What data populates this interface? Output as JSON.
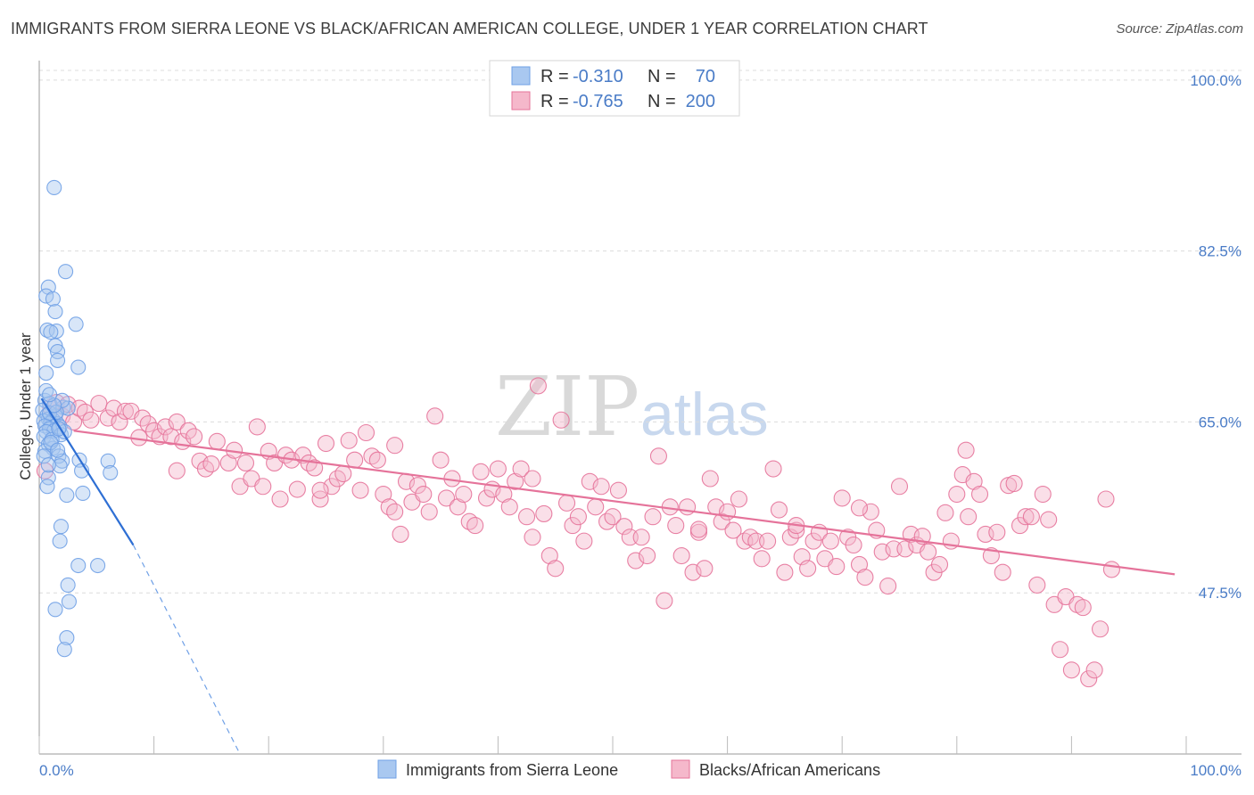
{
  "header": {
    "title": "IMMIGRANTS FROM SIERRA LEONE VS BLACK/AFRICAN AMERICAN COLLEGE, UNDER 1 YEAR CORRELATION CHART",
    "source": "Source: ZipAtlas.com"
  },
  "watermark": {
    "part1": "ZIP",
    "part2": "atlas"
  },
  "legend": {
    "rows": [
      {
        "r_label": "R =",
        "r_value": "-0.310",
        "n_label": "N =",
        "n_value": "70",
        "color": "#a9c8f0"
      },
      {
        "r_label": "R =",
        "r_value": "-0.765",
        "n_label": "N =",
        "n_value": "200",
        "color": "#f5b8cb"
      }
    ]
  },
  "bottom_legend": {
    "items": [
      {
        "label": "Immigrants from Sierra Leone",
        "color": "#a9c8f0"
      },
      {
        "label": "Blacks/African Americans",
        "color": "#f5b8cb"
      }
    ]
  },
  "chart_data": {
    "type": "scatter",
    "title": "IMMIGRANTS FROM SIERRA LEONE VS BLACK/AFRICAN AMERICAN COLLEGE, UNDER 1 YEAR CORRELATION CHART",
    "xlabel": "",
    "ylabel": "College, Under 1 year",
    "xlim": [
      0,
      100
    ],
    "ylim": [
      31,
      102
    ],
    "x_tick_labels": [
      "0.0%",
      "100.0%"
    ],
    "y_ticks": [
      47.5,
      65.0,
      82.5,
      100.0
    ],
    "y_tick_labels": [
      "47.5%",
      "65.0%",
      "82.5%",
      "100.0%"
    ],
    "grid": true,
    "series": [
      {
        "name": "Immigrants from Sierra Leone",
        "color": "#6fa0e6",
        "fill": "#a9c8f0",
        "trend": {
          "x": [
            0.2,
            8.2
          ],
          "y": [
            67.4,
            52.4
          ],
          "dashed_to": [
            17.5,
            31.0
          ]
        },
        "points": [
          [
            1.3,
            89.0
          ],
          [
            2.3,
            80.4
          ],
          [
            0.8,
            78.8
          ],
          [
            0.6,
            77.9
          ],
          [
            1.2,
            77.6
          ],
          [
            1.4,
            76.3
          ],
          [
            3.2,
            75.0
          ],
          [
            0.7,
            74.4
          ],
          [
            1.5,
            74.3
          ],
          [
            1.0,
            74.2
          ],
          [
            1.4,
            72.8
          ],
          [
            1.6,
            72.2
          ],
          [
            1.6,
            71.3
          ],
          [
            3.4,
            70.6
          ],
          [
            0.6,
            70.0
          ],
          [
            0.5,
            67.2
          ],
          [
            0.9,
            66.9
          ],
          [
            2.1,
            66.5
          ],
          [
            2.5,
            66.4
          ],
          [
            0.3,
            66.2
          ],
          [
            0.7,
            65.7
          ],
          [
            1.4,
            65.6
          ],
          [
            0.8,
            65.3
          ],
          [
            0.4,
            65.1
          ],
          [
            1.2,
            65.2
          ],
          [
            1.0,
            64.9
          ],
          [
            1.6,
            64.8
          ],
          [
            0.5,
            64.6
          ],
          [
            1.8,
            64.5
          ],
          [
            0.9,
            64.3
          ],
          [
            1.3,
            64.1
          ],
          [
            0.6,
            64.0
          ],
          [
            1.9,
            63.7
          ],
          [
            0.4,
            63.5
          ],
          [
            0.8,
            62.7
          ],
          [
            1.2,
            62.3
          ],
          [
            0.5,
            62.0
          ],
          [
            1.7,
            61.5
          ],
          [
            3.5,
            61.1
          ],
          [
            2.0,
            61.0
          ],
          [
            1.8,
            60.5
          ],
          [
            6.0,
            61.0
          ],
          [
            3.7,
            60.0
          ],
          [
            6.2,
            59.8
          ],
          [
            0.8,
            59.3
          ],
          [
            0.7,
            58.4
          ],
          [
            3.8,
            57.7
          ],
          [
            2.4,
            57.5
          ],
          [
            1.9,
            54.3
          ],
          [
            1.8,
            52.8
          ],
          [
            3.4,
            50.3
          ],
          [
            5.1,
            50.3
          ],
          [
            2.5,
            48.3
          ],
          [
            2.6,
            46.6
          ],
          [
            1.4,
            45.8
          ],
          [
            2.4,
            42.9
          ],
          [
            2.2,
            41.7
          ],
          [
            0.9,
            65.9
          ],
          [
            1.1,
            63.2
          ],
          [
            2.0,
            67.2
          ],
          [
            0.6,
            68.2
          ],
          [
            1.5,
            66.0
          ],
          [
            1.0,
            62.9
          ],
          [
            2.2,
            64.0
          ],
          [
            0.4,
            61.5
          ],
          [
            1.7,
            64.3
          ],
          [
            0.8,
            60.6
          ],
          [
            1.3,
            66.7
          ],
          [
            0.9,
            67.8
          ],
          [
            1.6,
            62.1
          ]
        ]
      },
      {
        "name": "Blacks/African Americans",
        "color": "#e5739a",
        "fill": "#f5b8cb",
        "trend": {
          "x": [
            3.0,
            99.0
          ],
          "y": [
            64.1,
            49.4
          ]
        },
        "points": [
          [
            0.5,
            60.0
          ],
          [
            1.0,
            66.5
          ],
          [
            1.5,
            67.0
          ],
          [
            2.0,
            65.6
          ],
          [
            2.5,
            66.8
          ],
          [
            3.0,
            65.0
          ],
          [
            3.5,
            66.4
          ],
          [
            4.0,
            66.0
          ],
          [
            4.5,
            65.2
          ],
          [
            5.2,
            66.9
          ],
          [
            6.0,
            65.4
          ],
          [
            6.5,
            66.4
          ],
          [
            7.0,
            65.0
          ],
          [
            7.5,
            66.1
          ],
          [
            8.0,
            66.1
          ],
          [
            8.7,
            63.4
          ],
          [
            9.0,
            65.4
          ],
          [
            9.5,
            64.8
          ],
          [
            10.0,
            64.1
          ],
          [
            10.5,
            63.5
          ],
          [
            11.0,
            64.5
          ],
          [
            11.5,
            63.5
          ],
          [
            12.0,
            65.0
          ],
          [
            12.5,
            63.0
          ],
          [
            13.0,
            64.1
          ],
          [
            13.5,
            63.5
          ],
          [
            14.0,
            61.0
          ],
          [
            14.5,
            60.2
          ],
          [
            15.0,
            60.7
          ],
          [
            15.5,
            63.0
          ],
          [
            16.5,
            60.8
          ],
          [
            17.0,
            62.1
          ],
          [
            17.5,
            58.4
          ],
          [
            18.0,
            60.8
          ],
          [
            18.5,
            59.2
          ],
          [
            19.0,
            64.5
          ],
          [
            19.5,
            58.4
          ],
          [
            20.0,
            62.0
          ],
          [
            20.5,
            60.8
          ],
          [
            21.0,
            57.1
          ],
          [
            21.5,
            61.6
          ],
          [
            22.0,
            61.1
          ],
          [
            22.5,
            58.1
          ],
          [
            23.0,
            61.6
          ],
          [
            23.5,
            60.8
          ],
          [
            24.0,
            60.3
          ],
          [
            24.5,
            57.1
          ],
          [
            25.0,
            62.8
          ],
          [
            25.5,
            58.4
          ],
          [
            26.0,
            59.2
          ],
          [
            26.5,
            59.7
          ],
          [
            27.0,
            63.1
          ],
          [
            27.5,
            61.1
          ],
          [
            28.0,
            58.0
          ],
          [
            28.5,
            63.9
          ],
          [
            29.0,
            61.5
          ],
          [
            29.5,
            61.1
          ],
          [
            30.0,
            57.6
          ],
          [
            30.5,
            56.3
          ],
          [
            31.0,
            62.6
          ],
          [
            31.5,
            53.5
          ],
          [
            32.0,
            58.9
          ],
          [
            32.5,
            56.8
          ],
          [
            33.0,
            58.5
          ],
          [
            33.5,
            57.6
          ],
          [
            34.0,
            55.8
          ],
          [
            34.5,
            65.6
          ],
          [
            35.0,
            61.1
          ],
          [
            35.5,
            57.2
          ],
          [
            36.0,
            59.2
          ],
          [
            36.5,
            56.3
          ],
          [
            37.0,
            57.6
          ],
          [
            37.5,
            54.8
          ],
          [
            38.0,
            54.4
          ],
          [
            38.5,
            59.9
          ],
          [
            39.0,
            57.2
          ],
          [
            39.5,
            58.1
          ],
          [
            40.0,
            60.2
          ],
          [
            40.5,
            57.6
          ],
          [
            41.0,
            56.3
          ],
          [
            41.5,
            58.9
          ],
          [
            42.0,
            60.2
          ],
          [
            42.5,
            55.3
          ],
          [
            43.0,
            53.2
          ],
          [
            43.5,
            68.7
          ],
          [
            44.0,
            55.6
          ],
          [
            44.5,
            51.3
          ],
          [
            45.0,
            50.0
          ],
          [
            45.5,
            65.2
          ],
          [
            46.0,
            56.7
          ],
          [
            46.5,
            54.4
          ],
          [
            47.0,
            55.3
          ],
          [
            47.5,
            52.8
          ],
          [
            48.0,
            58.9
          ],
          [
            48.5,
            56.3
          ],
          [
            49.0,
            58.4
          ],
          [
            49.5,
            54.8
          ],
          [
            50.0,
            55.3
          ],
          [
            50.5,
            58.0
          ],
          [
            51.0,
            54.3
          ],
          [
            51.5,
            53.2
          ],
          [
            52.0,
            50.8
          ],
          [
            52.5,
            53.2
          ],
          [
            53.0,
            51.3
          ],
          [
            53.5,
            55.3
          ],
          [
            54.0,
            61.5
          ],
          [
            54.5,
            46.7
          ],
          [
            55.0,
            56.3
          ],
          [
            55.5,
            54.4
          ],
          [
            56.0,
            51.3
          ],
          [
            56.5,
            56.3
          ],
          [
            57.0,
            49.6
          ],
          [
            57.5,
            53.7
          ],
          [
            58.0,
            50.0
          ],
          [
            58.5,
            59.2
          ],
          [
            59.0,
            56.3
          ],
          [
            59.5,
            54.8
          ],
          [
            60.0,
            55.8
          ],
          [
            60.5,
            53.9
          ],
          [
            61.0,
            57.1
          ],
          [
            61.5,
            52.8
          ],
          [
            62.0,
            53.2
          ],
          [
            62.5,
            52.8
          ],
          [
            63.0,
            51.0
          ],
          [
            63.5,
            52.8
          ],
          [
            64.0,
            60.2
          ],
          [
            64.5,
            56.0
          ],
          [
            65.0,
            49.6
          ],
          [
            65.5,
            53.2
          ],
          [
            66.0,
            53.9
          ],
          [
            66.5,
            51.2
          ],
          [
            67.0,
            50.0
          ],
          [
            67.5,
            52.8
          ],
          [
            68.0,
            53.7
          ],
          [
            68.5,
            51.0
          ],
          [
            69.0,
            52.8
          ],
          [
            69.5,
            50.2
          ],
          [
            70.0,
            57.2
          ],
          [
            70.5,
            53.2
          ],
          [
            71.0,
            52.4
          ],
          [
            71.5,
            50.4
          ],
          [
            72.0,
            49.1
          ],
          [
            72.5,
            55.8
          ],
          [
            73.0,
            53.9
          ],
          [
            73.5,
            51.7
          ],
          [
            74.0,
            48.2
          ],
          [
            74.5,
            52.0
          ],
          [
            75.0,
            58.4
          ],
          [
            75.5,
            52.0
          ],
          [
            76.0,
            53.5
          ],
          [
            76.5,
            52.4
          ],
          [
            77.0,
            53.3
          ],
          [
            77.5,
            51.7
          ],
          [
            78.0,
            49.6
          ],
          [
            78.5,
            50.4
          ],
          [
            79.0,
            55.7
          ],
          [
            79.5,
            52.8
          ],
          [
            80.0,
            57.6
          ],
          [
            80.5,
            59.6
          ],
          [
            80.8,
            62.1
          ],
          [
            81.0,
            55.3
          ],
          [
            81.5,
            58.9
          ],
          [
            82.0,
            57.6
          ],
          [
            82.5,
            53.5
          ],
          [
            83.0,
            51.3
          ],
          [
            83.5,
            53.7
          ],
          [
            84.0,
            49.6
          ],
          [
            84.5,
            58.5
          ],
          [
            85.0,
            58.7
          ],
          [
            85.5,
            54.4
          ],
          [
            86.0,
            55.3
          ],
          [
            86.5,
            55.3
          ],
          [
            87.0,
            48.3
          ],
          [
            87.5,
            57.6
          ],
          [
            88.0,
            55.0
          ],
          [
            88.5,
            46.3
          ],
          [
            89.0,
            41.7
          ],
          [
            89.5,
            47.1
          ],
          [
            90.0,
            39.6
          ],
          [
            90.5,
            46.3
          ],
          [
            91.0,
            46.0
          ],
          [
            91.5,
            38.7
          ],
          [
            92.0,
            39.6
          ],
          [
            92.5,
            43.8
          ],
          [
            93.0,
            57.1
          ],
          [
            93.5,
            49.9
          ],
          [
            66.0,
            54.4
          ],
          [
            24.5,
            58.0
          ],
          [
            12.0,
            60.0
          ],
          [
            31.0,
            55.8
          ],
          [
            43.0,
            59.2
          ],
          [
            57.5,
            54.0
          ],
          [
            71.5,
            56.2
          ]
        ]
      }
    ]
  }
}
